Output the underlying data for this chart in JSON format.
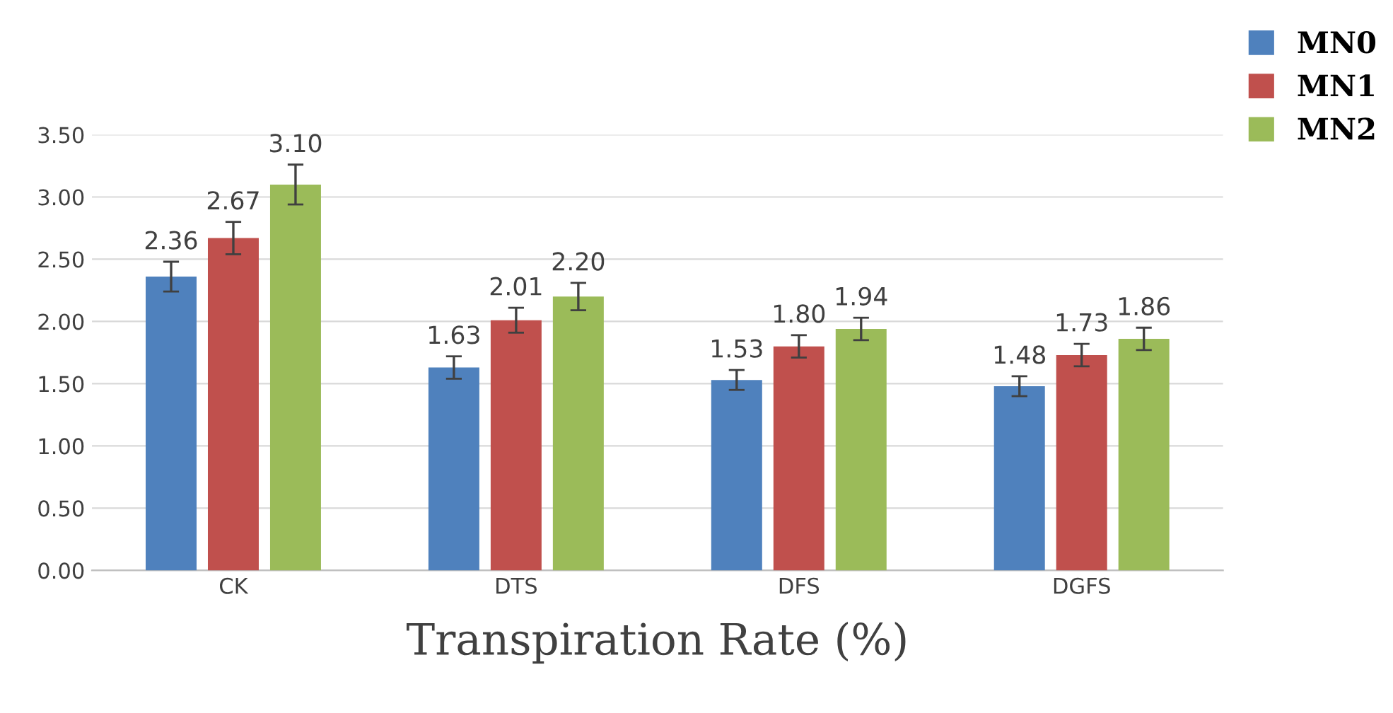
{
  "chart_data": {
    "type": "bar",
    "xlabel": "Transpiration Rate (%)",
    "categories": [
      "CK",
      "DTS",
      "DFS",
      "DGFS"
    ],
    "series": [
      {
        "name": "MN0",
        "color": "#4f81bd",
        "values": [
          2.36,
          1.63,
          1.53,
          1.48
        ],
        "value_labels": [
          "2.36",
          "1.63",
          "1.53",
          "1.48"
        ],
        "errors": [
          0.12,
          0.09,
          0.08,
          0.08
        ]
      },
      {
        "name": "MN1",
        "color": "#c0504d",
        "values": [
          2.67,
          2.01,
          1.8,
          1.73
        ],
        "value_labels": [
          "2.67",
          "2.01",
          "1.80",
          "1.73"
        ],
        "errors": [
          0.13,
          0.1,
          0.09,
          0.09
        ]
      },
      {
        "name": "MN2",
        "color": "#9bbb59",
        "values": [
          3.1,
          2.2,
          1.94,
          1.86
        ],
        "value_labels": [
          "3.10",
          "2.20",
          "1.94",
          "1.86"
        ],
        "errors": [
          0.16,
          0.11,
          0.09,
          0.09
        ]
      }
    ],
    "ylim": [
      0,
      3.5
    ],
    "yticks": [
      {
        "value": 0,
        "label": "0.00"
      },
      {
        "value": 0.5,
        "label": "0.50"
      },
      {
        "value": 1,
        "label": "1.00"
      },
      {
        "value": 1.5,
        "label": "1.50"
      },
      {
        "value": 2,
        "label": "2.00"
      },
      {
        "value": 2.5,
        "label": "2.50"
      },
      {
        "value": 3,
        "label": "3.00"
      },
      {
        "value": 3.5,
        "label": "3.50"
      }
    ],
    "grid": "y",
    "legend": "top right"
  }
}
